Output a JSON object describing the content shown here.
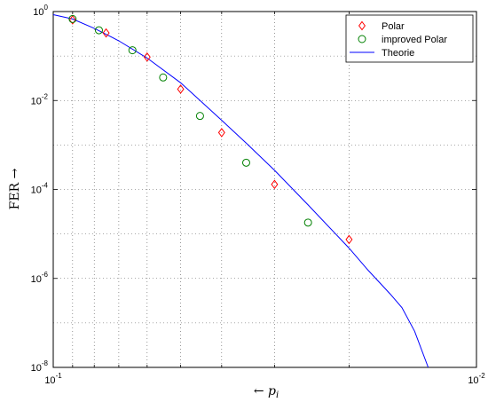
{
  "chart_data": {
    "type": "line",
    "title": "",
    "xlabel": "← p_i",
    "ylabel": "FER →",
    "x_scale": "log",
    "y_scale": "log",
    "x_reversed": true,
    "xlim": [
      0.1,
      0.01
    ],
    "ylim": [
      1e-08,
      1
    ],
    "grid": true,
    "legend_position": "top-right",
    "x_ticks": [
      {
        "base": "10",
        "exp": "-1",
        "value": 0.1
      },
      {
        "base": "10",
        "exp": "-2",
        "value": 0.01
      }
    ],
    "y_ticks": [
      {
        "base": "10",
        "exp": "0",
        "value": 1
      },
      {
        "base": "10",
        "exp": "-2",
        "value": 0.01
      },
      {
        "base": "10",
        "exp": "-4",
        "value": 0.0001
      },
      {
        "base": "10",
        "exp": "-6",
        "value": 1e-06
      },
      {
        "base": "10",
        "exp": "-8",
        "value": 1e-08
      }
    ],
    "series": [
      {
        "name": "Polar",
        "marker": "diamond",
        "color": "#ff0000",
        "x": [
          0.09,
          0.075,
          0.06,
          0.05,
          0.04,
          0.03,
          0.02
        ],
        "y": [
          0.65,
          0.33,
          0.095,
          0.018,
          0.0019,
          0.00013,
          7.5e-06
        ]
      },
      {
        "name": "improved Polar",
        "marker": "circle",
        "color": "#008000",
        "x": [
          0.09,
          0.078,
          0.065,
          0.055,
          0.045,
          0.035,
          0.025
        ],
        "y": [
          0.68,
          0.38,
          0.135,
          0.033,
          0.0045,
          0.0004,
          1.8e-05
        ]
      },
      {
        "name": "Theorie",
        "marker": "line",
        "color": "#0000ff",
        "x": [
          0.1,
          0.09,
          0.08,
          0.07,
          0.06,
          0.05,
          0.04,
          0.035,
          0.03,
          0.025,
          0.02,
          0.018,
          0.016,
          0.015,
          0.014,
          0.013
        ],
        "y": [
          0.85,
          0.68,
          0.42,
          0.22,
          0.09,
          0.025,
          0.0036,
          0.0011,
          0.00027,
          4.5e-05,
          4.8e-06,
          1.5e-06,
          4.5e-07,
          2.2e-07,
          6.5e-08,
          1e-08
        ]
      }
    ]
  }
}
